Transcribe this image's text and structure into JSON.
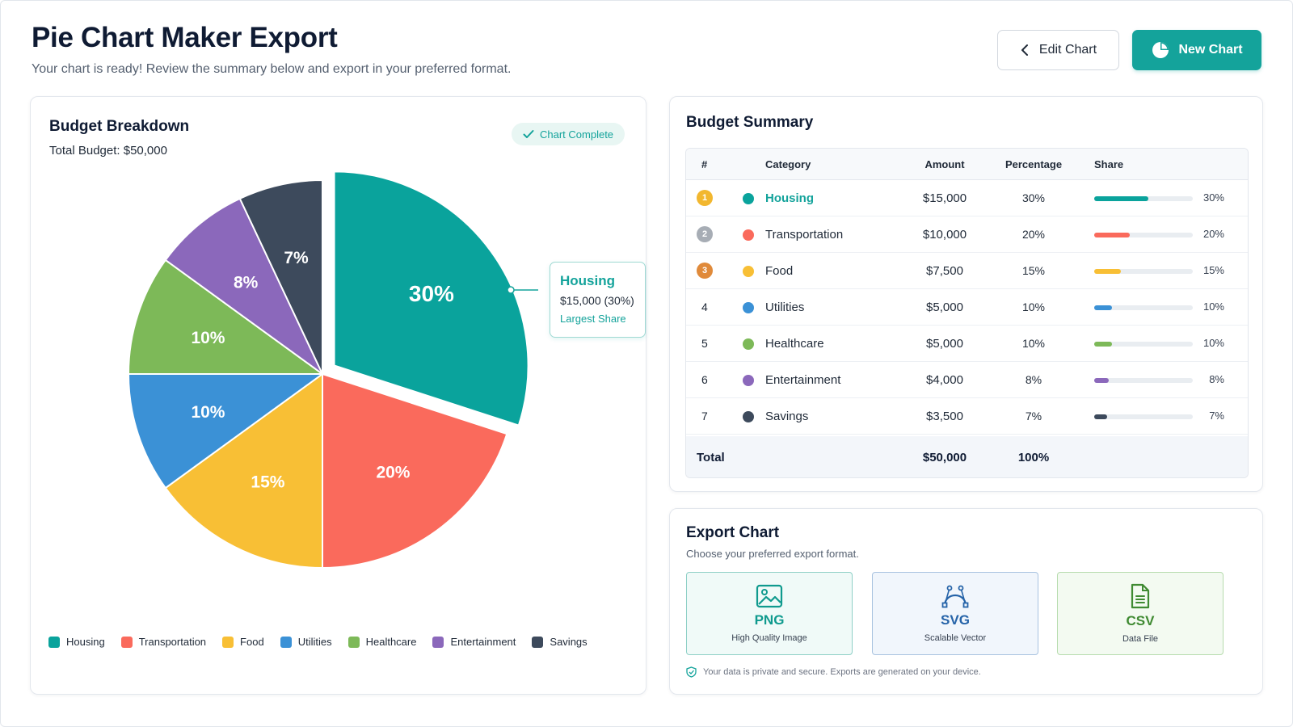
{
  "header": {
    "title": "Pie Chart Maker Export",
    "subtitle": "Your chart is ready! Review the summary below and export in your preferred format.",
    "edit_label": "Edit Chart",
    "new_label": "New Chart"
  },
  "breakdown": {
    "title": "Budget Breakdown",
    "total": "Total Budget: $50,000",
    "badge": "Chart Complete"
  },
  "tooltip": {
    "name": "Housing",
    "value": "$15,000 (30%)",
    "note": "Largest Share"
  },
  "chart_data": {
    "type": "pie",
    "categories": [
      "Housing",
      "Transportation",
      "Food",
      "Utilities",
      "Healthcare",
      "Entertainment",
      "Savings"
    ],
    "values": [
      30,
      20,
      15,
      10,
      10,
      8,
      7
    ],
    "labels": [
      "30%",
      "20%",
      "15%",
      "10%",
      "10%",
      "8%",
      "7%"
    ],
    "colors": [
      "#0aa39c",
      "#fa6a5c",
      "#f8bf35",
      "#3b91d6",
      "#7db958",
      "#8b68bb",
      "#3d4a5c"
    ],
    "exploded": "Housing",
    "legend_position": "bottom"
  },
  "summary": {
    "title": "Budget Summary",
    "columns": [
      "#",
      "Category",
      "Amount",
      "Percentage",
      "Share"
    ],
    "rows": [
      {
        "rank": "1",
        "category": "Housing",
        "amount": "$15,000",
        "percentage": "30%",
        "share": "30%",
        "value": 0.3,
        "color": "#0aa39c"
      },
      {
        "rank": "2",
        "category": "Transportation",
        "amount": "$10,000",
        "percentage": "20%",
        "share": "20%",
        "value": 0.2,
        "color": "#fa6a5c"
      },
      {
        "rank": "3",
        "category": "Food",
        "amount": "$7,500",
        "percentage": "15%",
        "share": "15%",
        "value": 0.15,
        "color": "#f8bf35"
      },
      {
        "rank": "4",
        "category": "Utilities",
        "amount": "$5,000",
        "percentage": "10%",
        "share": "10%",
        "value": 0.1,
        "color": "#3b91d6"
      },
      {
        "rank": "5",
        "category": "Healthcare",
        "amount": "$5,000",
        "percentage": "10%",
        "share": "10%",
        "value": 0.1,
        "color": "#7db958"
      },
      {
        "rank": "6",
        "category": "Entertainment",
        "amount": "$4,000",
        "percentage": "8%",
        "share": "8%",
        "value": 0.08,
        "color": "#8b68bb"
      },
      {
        "rank": "7",
        "category": "Savings",
        "amount": "$3,500",
        "percentage": "7%",
        "share": "7%",
        "value": 0.07,
        "color": "#3d4a5c"
      }
    ],
    "total_label": "Total",
    "total_amount": "$50,000",
    "total_percentage": "100%"
  },
  "export": {
    "title": "Export Chart",
    "subtitle": "Choose your preferred export format.",
    "options": [
      {
        "label": "PNG",
        "desc": "High Quality Image",
        "icon": "image-icon",
        "color": "#0f9a8e"
      },
      {
        "label": "SVG",
        "desc": "Scalable Vector",
        "icon": "bezier-curve-icon",
        "color": "#2563a8"
      },
      {
        "label": "CSV",
        "desc": "Data File",
        "icon": "document-icon",
        "color": "#3f8a32"
      }
    ],
    "privacy": "Your data is private and secure. Exports are generated on your device."
  },
  "medal_colors": [
    "#f2b72f",
    "#a7adb5",
    "#e08a3a"
  ]
}
